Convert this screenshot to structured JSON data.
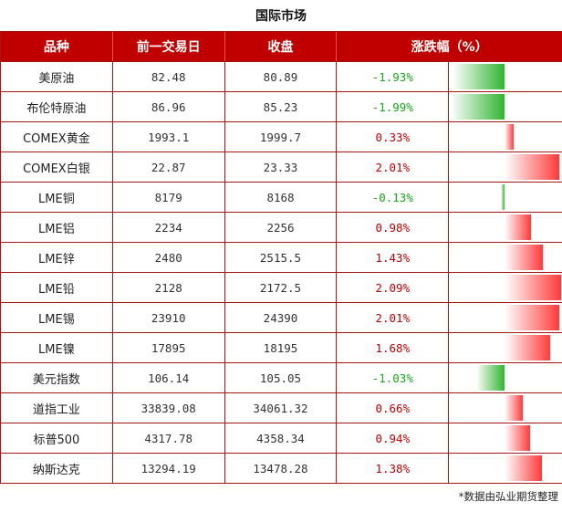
{
  "title": "国际市场",
  "header": {
    "col_name": "品种",
    "col_prev": "前一交易日",
    "col_close": "收盘",
    "col_change": "涨跌幅（%）"
  },
  "rows": [
    {
      "name": "美原油",
      "prev": "82.48",
      "close": "80.89",
      "change": "-1.93%",
      "pct": -1.93
    },
    {
      "name": "布伦特原油",
      "prev": "86.96",
      "close": "85.23",
      "change": "-1.99%",
      "pct": -1.99
    },
    {
      "name": "COMEX黄金",
      "prev": "1993.1",
      "close": "1999.7",
      "change": "0.33%",
      "pct": 0.33
    },
    {
      "name": "COMEX白银",
      "prev": "22.87",
      "close": "23.33",
      "change": "2.01%",
      "pct": 2.01
    },
    {
      "name": "LME铜",
      "prev": "8179",
      "close": "8168",
      "change": "-0.13%",
      "pct": -0.13
    },
    {
      "name": "LME铝",
      "prev": "2234",
      "close": "2256",
      "change": "0.98%",
      "pct": 0.98
    },
    {
      "name": "LME锌",
      "prev": "2480",
      "close": "2515.5",
      "change": "1.43%",
      "pct": 1.43
    },
    {
      "name": "LME铅",
      "prev": "2128",
      "close": "2172.5",
      "change": "2.09%",
      "pct": 2.09
    },
    {
      "name": "LME锡",
      "prev": "23910",
      "close": "24390",
      "change": "2.01%",
      "pct": 2.01
    },
    {
      "name": "LME镍",
      "prev": "17895",
      "close": "18195",
      "change": "1.68%",
      "pct": 1.68
    },
    {
      "name": "美元指数",
      "prev": "106.14",
      "close": "105.05",
      "change": "-1.03%",
      "pct": -1.03
    },
    {
      "name": "道指工业",
      "prev": "33839.08",
      "close": "34061.32",
      "change": "0.66%",
      "pct": 0.66
    },
    {
      "name": "标普500",
      "prev": "4317.78",
      "close": "4358.34",
      "change": "0.94%",
      "pct": 0.94
    },
    {
      "name": "纳斯达克",
      "prev": "13294.19",
      "close": "13478.28",
      "change": "1.38%",
      "pct": 1.38
    }
  ],
  "colors": {
    "header_bg": "#c00000",
    "up": "#c00000",
    "down": "#1aa51a"
  },
  "footnote": "*数据由弘业期货整理"
}
